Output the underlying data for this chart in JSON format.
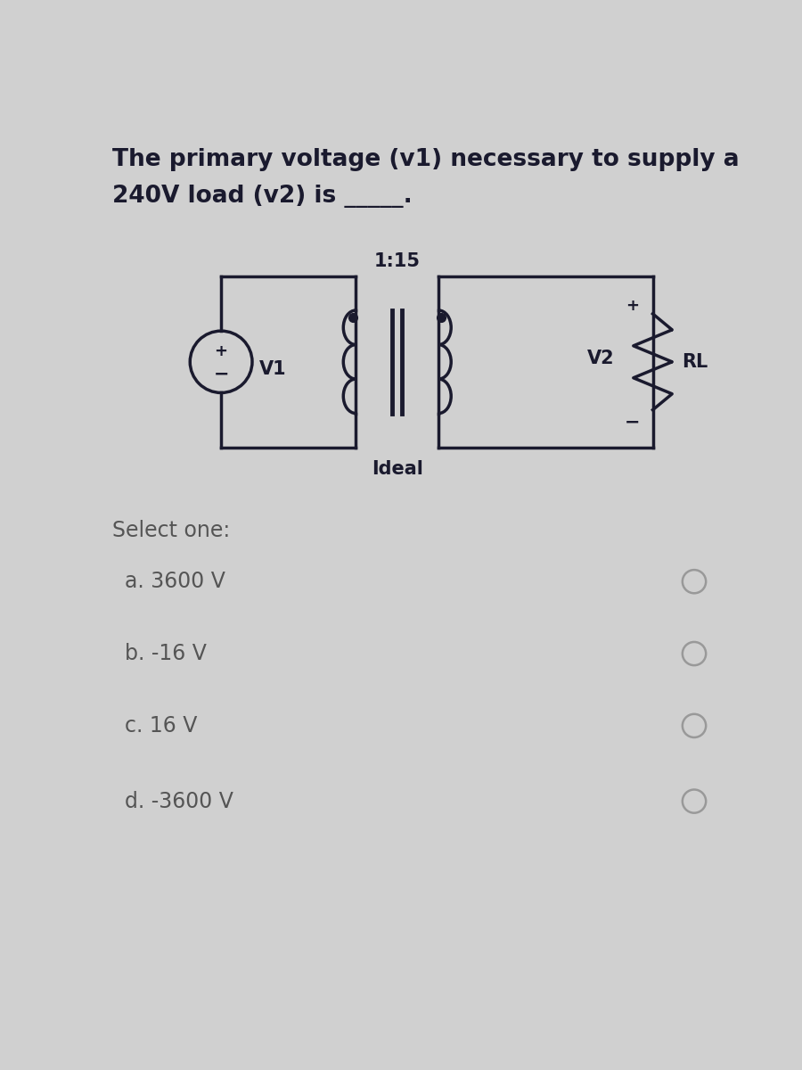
{
  "question_text_line1": "The primary voltage (v1) necessary to supply a",
  "question_text_line2": "240V load (v2) is _____.",
  "circuit_ratio": "1:15",
  "circuit_label_v1": "V1",
  "circuit_label_v2": "V2",
  "circuit_label_rl": "RL",
  "circuit_label_ideal": "Ideal",
  "select_one_text": "Select one:",
  "options": [
    "a. 3600 V",
    "b. -16 V",
    "c. 16 V",
    "d. -3600 V"
  ],
  "bg_color": "#d0d0d0",
  "text_color": "#1a1a2e",
  "circuit_color": "#1a1a2e",
  "option_text_color": "#555555",
  "question_fontsize": 19,
  "select_fontsize": 17,
  "option_fontsize": 17
}
